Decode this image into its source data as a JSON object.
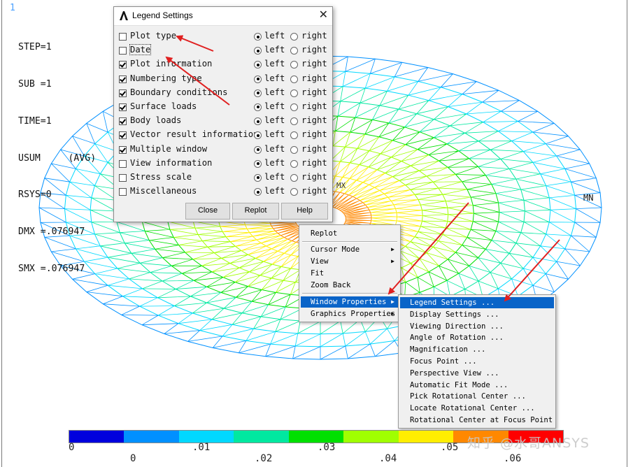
{
  "window_number": "1",
  "status_lines": [
    "STEP=1",
    "SUB =1",
    "TIME=1",
    "USUM     (AVG)",
    "RSYS=0",
    "DMX =.076947",
    "SMX =.076947"
  ],
  "plot_labels": {
    "mn": "MN",
    "mx": "MX"
  },
  "dialog": {
    "title": "Legend Settings",
    "close_icon": "close-icon",
    "rows": [
      {
        "label": "Plot type",
        "checked": false,
        "position": "left"
      },
      {
        "label": "Date",
        "checked": false,
        "position": "left"
      },
      {
        "label": "Plot information",
        "checked": true,
        "position": "left"
      },
      {
        "label": "Numbering type",
        "checked": true,
        "position": "left"
      },
      {
        "label": "Boundary conditions",
        "checked": true,
        "position": "left"
      },
      {
        "label": "Surface loads",
        "checked": true,
        "position": "left"
      },
      {
        "label": "Body loads",
        "checked": true,
        "position": "left"
      },
      {
        "label": "Vector result information",
        "checked": true,
        "position": "left"
      },
      {
        "label": "Multiple window",
        "checked": true,
        "position": "left"
      },
      {
        "label": "View information",
        "checked": false,
        "position": "left"
      },
      {
        "label": "Stress scale",
        "checked": false,
        "position": "left"
      },
      {
        "label": "Miscellaneous",
        "checked": false,
        "position": "left"
      }
    ],
    "left_label": "left",
    "right_label": "right",
    "buttons": {
      "close": "Close",
      "replot": "Replot",
      "help": "Help"
    }
  },
  "context_menu": {
    "items": [
      "Replot",
      "Cursor Mode",
      "View",
      "Fit",
      "Zoom Back",
      "Window Properties",
      "Graphics Properties"
    ],
    "submenu_arrow": "▶"
  },
  "window_properties_menu": {
    "items": [
      "Legend Settings ...",
      "Display Settings ...",
      "Viewing Direction ...",
      "Angle of Rotation ...",
      "Magnification ...",
      "Focus Point ...",
      "Perspective View ...",
      "Automatic Fit Mode ...",
      "Pick Rotational Center ...",
      "Locate Rotational Center ...",
      "Rotational Center at Focus Point"
    ]
  },
  "legend": {
    "colors": [
      "#0000dd",
      "#0090ff",
      "#00d8ff",
      "#00e8a0",
      "#00e000",
      "#a0ff00",
      "#ffee00",
      "#ff8800",
      "#ff0000"
    ],
    "upper_labels": [
      "0",
      ".01",
      ".03",
      ".05"
    ],
    "lower_labels": [
      "0",
      ".02",
      ".04",
      ".06"
    ]
  },
  "watermark": "知乎 @水哥ANSYS",
  "colors": {
    "highlight": "#0a64c8",
    "arrow": "#e02020"
  }
}
